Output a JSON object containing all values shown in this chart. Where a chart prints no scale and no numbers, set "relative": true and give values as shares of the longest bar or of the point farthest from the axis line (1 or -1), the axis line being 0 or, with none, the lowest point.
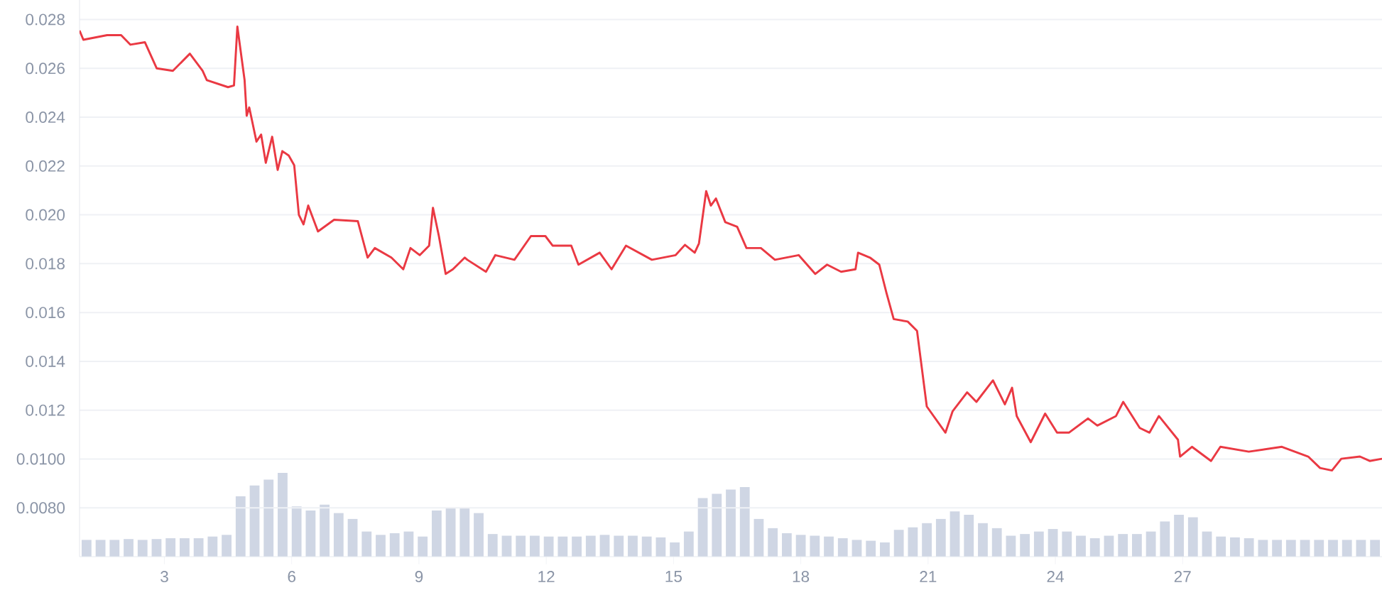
{
  "chart_data": [
    {
      "type": "line",
      "color": "#ea3943",
      "grid": "y",
      "xlim": [
        1,
        31.7
      ],
      "ylim": [
        0.006,
        0.0288
      ],
      "xticks": [
        3,
        6,
        9,
        12,
        15,
        18,
        21,
        24,
        27
      ],
      "yticks": [
        {
          "value": 0.008,
          "label": "0.0080"
        },
        {
          "value": 0.01,
          "label": "0.0100"
        },
        0.012,
        0.014,
        0.016,
        0.018,
        {
          "value": 0.02,
          "label": "0.020"
        },
        0.022,
        0.024,
        0.026,
        0.028
      ],
      "x": [
        1.0,
        1.09,
        1.65,
        1.98,
        2.2,
        2.54,
        2.82,
        3.2,
        3.6,
        3.9,
        4.0,
        4.5,
        4.64,
        4.72,
        4.89,
        4.94,
        5.0,
        5.17,
        5.28,
        5.39,
        5.54,
        5.67,
        5.78,
        5.93,
        6.06,
        6.17,
        6.28,
        6.39,
        6.62,
        7.0,
        7.56,
        7.79,
        7.96,
        8.35,
        8.63,
        8.8,
        9.02,
        9.24,
        9.33,
        9.47,
        9.63,
        9.8,
        10.08,
        10.14,
        10.58,
        10.8,
        11.25,
        11.64,
        11.98,
        12.15,
        12.59,
        12.76,
        13.26,
        13.54,
        13.88,
        14.49,
        15.05,
        15.27,
        15.5,
        15.6,
        15.77,
        15.88,
        16.0,
        16.22,
        16.5,
        16.72,
        17.06,
        17.39,
        17.95,
        18.34,
        18.62,
        18.95,
        19.29,
        19.35,
        19.63,
        19.85,
        20.02,
        20.19,
        20.52,
        20.74,
        20.97,
        21.41,
        21.58,
        21.92,
        22.14,
        22.53,
        22.81,
        22.98,
        23.09,
        23.42,
        23.76,
        24.04,
        24.32,
        24.77,
        24.99,
        25.43,
        25.6,
        25.99,
        26.22,
        26.44,
        26.89,
        26.94,
        27.22,
        27.67,
        27.89,
        28.56,
        29.34,
        29.96,
        30.24,
        30.52,
        30.74,
        31.18,
        31.41,
        31.7
      ],
      "values": [
        0.02755,
        0.02717,
        0.02736,
        0.02736,
        0.02697,
        0.02707,
        0.026,
        0.0259,
        0.0266,
        0.0259,
        0.02552,
        0.02523,
        0.0253,
        0.02771,
        0.02552,
        0.02406,
        0.0244,
        0.023,
        0.02329,
        0.02213,
        0.0232,
        0.02184,
        0.02261,
        0.02243,
        0.02203,
        0.02,
        0.01961,
        0.02038,
        0.01932,
        0.0198,
        0.01974,
        0.01825,
        0.01864,
        0.01825,
        0.01777,
        0.01864,
        0.01835,
        0.01874,
        0.02029,
        0.01913,
        0.01758,
        0.01777,
        0.01825,
        0.01816,
        0.01767,
        0.01835,
        0.01816,
        0.01913,
        0.01913,
        0.01874,
        0.01874,
        0.01796,
        0.01845,
        0.01777,
        0.01874,
        0.01816,
        0.01835,
        0.01877,
        0.01845,
        0.01883,
        0.02097,
        0.02038,
        0.02067,
        0.0197,
        0.01951,
        0.01864,
        0.01864,
        0.01816,
        0.01835,
        0.01758,
        0.01796,
        0.01767,
        0.01777,
        0.01845,
        0.01825,
        0.01796,
        0.0168,
        0.01573,
        0.01563,
        0.01525,
        0.01215,
        0.01108,
        0.01196,
        0.01273,
        0.01234,
        0.01322,
        0.01224,
        0.01292,
        0.01176,
        0.01069,
        0.01186,
        0.01108,
        0.01108,
        0.01166,
        0.01137,
        0.01176,
        0.01234,
        0.01127,
        0.01108,
        0.01176,
        0.01079,
        0.0101,
        0.0105,
        0.00992,
        0.0105,
        0.0103,
        0.0105,
        0.0101,
        0.00963,
        0.00953,
        0.01001,
        0.0101,
        0.00992,
        0.01001
      ]
    },
    {
      "type": "bar",
      "relative": true,
      "color": "#cfd6e4",
      "categories": [
        null,
        null,
        null,
        null,
        null,
        null,
        null,
        null,
        null,
        null,
        null,
        null,
        null,
        null,
        null,
        null,
        null,
        null,
        null,
        null,
        null,
        null,
        null,
        null,
        null,
        null,
        null,
        null,
        null,
        null,
        null,
        null,
        null,
        null,
        null,
        null,
        null,
        null,
        null,
        null,
        null,
        null,
        null,
        null,
        null,
        null,
        null,
        null,
        null,
        null,
        null,
        null,
        null,
        null,
        null,
        null,
        null,
        null,
        null,
        null,
        null,
        null,
        null,
        null,
        null,
        null,
        null,
        null,
        null,
        null,
        null,
        null,
        null,
        null,
        null,
        null,
        null,
        null,
        null,
        null,
        null,
        null,
        null,
        null,
        null,
        null,
        null,
        null,
        null,
        null,
        null,
        null,
        null
      ],
      "values": [
        0.2,
        0.2,
        0.2,
        0.21,
        0.2,
        0.21,
        0.22,
        0.22,
        0.22,
        0.24,
        0.26,
        0.72,
        0.85,
        0.92,
        1.0,
        0.6,
        0.55,
        0.62,
        0.52,
        0.45,
        0.3,
        0.26,
        0.28,
        0.3,
        0.24,
        0.55,
        0.58,
        0.58,
        0.52,
        0.27,
        0.25,
        0.25,
        0.25,
        0.24,
        0.24,
        0.24,
        0.25,
        0.26,
        0.25,
        0.25,
        0.24,
        0.23,
        0.17,
        0.3,
        0.7,
        0.75,
        0.8,
        0.83,
        0.45,
        0.34,
        0.28,
        0.26,
        0.25,
        0.24,
        0.22,
        0.2,
        0.19,
        0.17,
        0.32,
        0.35,
        0.4,
        0.45,
        0.54,
        0.5,
        0.4,
        0.34,
        0.25,
        0.27,
        0.3,
        0.33,
        0.3,
        0.25,
        0.22,
        0.25,
        0.27,
        0.27,
        0.3,
        0.42,
        0.5,
        0.47,
        0.3,
        0.24,
        0.23,
        0.22,
        0.2,
        0.2,
        0.2,
        0.2,
        0.2,
        0.2,
        0.2,
        0.2,
        0.2
      ]
    }
  ]
}
